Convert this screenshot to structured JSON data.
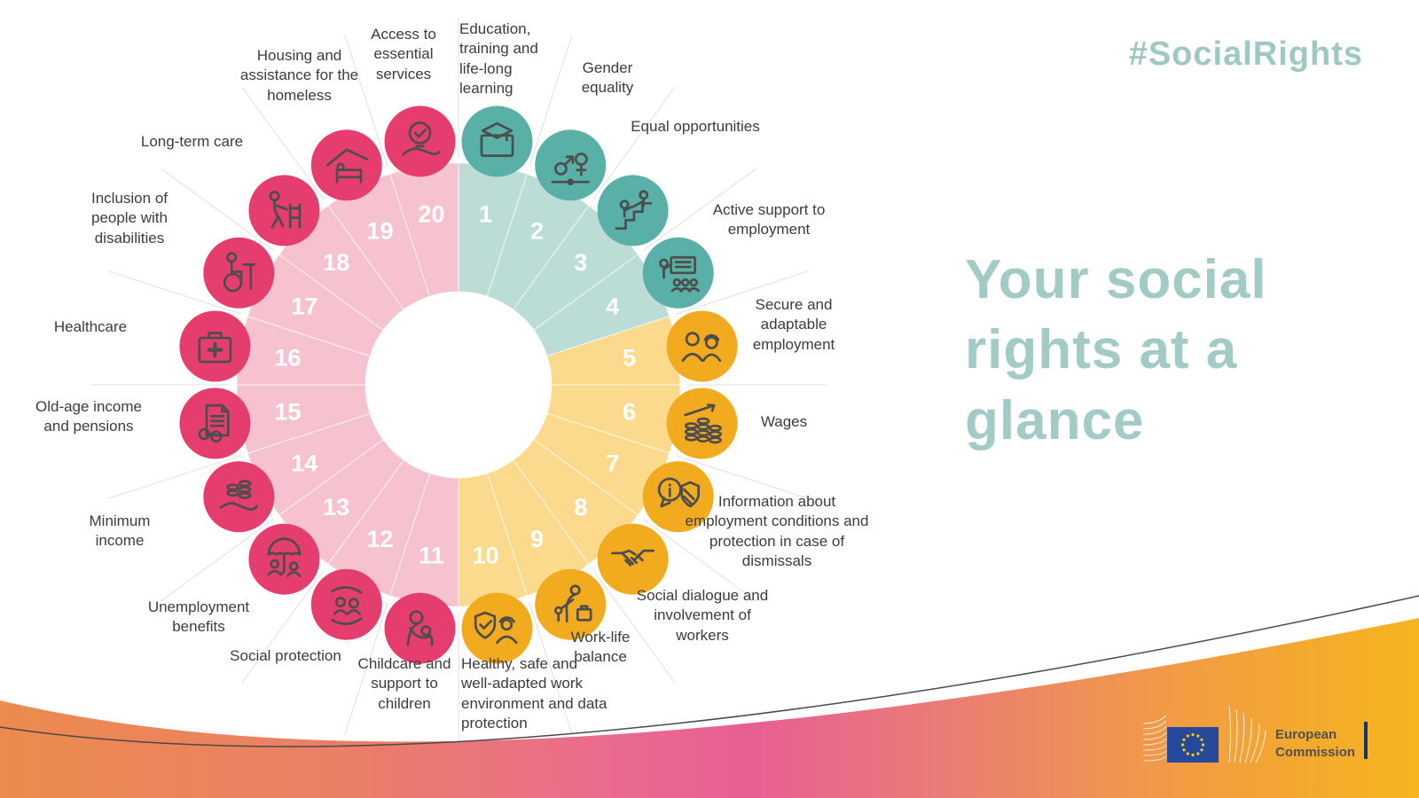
{
  "header": {
    "hashtag": "#SocialRights"
  },
  "title": {
    "text": "Your social rights at a glance"
  },
  "logo": {
    "line1": "European",
    "line2": "Commission"
  },
  "colors": {
    "accent_teal_text": "#9fc8c3",
    "teal_light": "#bcdcd6",
    "teal_dark": "#58b0a6",
    "yellow_light": "#fbd98d",
    "yellow_dark": "#f2ab1e",
    "pink_light": "#f6c2d0",
    "pink_dark": "#e63d6f",
    "wave_orange": "#ec8b4d",
    "wave_pink": "#e75f95",
    "wave_yellow": "#f5b51f"
  },
  "chart_data": {
    "type": "pie",
    "title": "Your social rights at a glance",
    "legend_position": "around",
    "segments_total": 20,
    "segment_angle_deg": 18,
    "values_equal": true,
    "groups": [
      {
        "name": "equal-opportunities-and-access",
        "light": "#bcdcd6",
        "dark": "#58b0a6"
      },
      {
        "name": "fair-working-conditions",
        "light": "#fbd98d",
        "dark": "#f2ab1e"
      },
      {
        "name": "social-protection-and-inclusion",
        "light": "#f6c2d0",
        "dark": "#e63d6f"
      }
    ],
    "segments": [
      {
        "number": 1,
        "label": "Education, training and life-long learning",
        "group": 0,
        "icon": "education-icon"
      },
      {
        "number": 2,
        "label": "Gender equality",
        "group": 0,
        "icon": "gender-equality-icon"
      },
      {
        "number": 3,
        "label": "Equal opportunities",
        "group": 0,
        "icon": "equal-opportunities-icon"
      },
      {
        "number": 4,
        "label": "Active support to employment",
        "group": 0,
        "icon": "active-support-icon"
      },
      {
        "number": 5,
        "label": "Secure and adaptable employment",
        "group": 1,
        "icon": "secure-employment-icon"
      },
      {
        "number": 6,
        "label": "Wages",
        "group": 1,
        "icon": "wages-icon"
      },
      {
        "number": 7,
        "label": "Information about employment conditions and protection in case of dismissals",
        "group": 1,
        "icon": "information-shield-icon"
      },
      {
        "number": 8,
        "label": "Social dialogue and involvement of workers",
        "group": 1,
        "icon": "handshake-icon"
      },
      {
        "number": 9,
        "label": "Work-life balance",
        "group": 1,
        "icon": "work-life-balance-icon"
      },
      {
        "number": 10,
        "label": "Healthy, safe and well-adapted work environment and data protection",
        "group": 1,
        "icon": "healthy-work-icon"
      },
      {
        "number": 11,
        "label": "Childcare and support to children",
        "group": 2,
        "icon": "childcare-icon"
      },
      {
        "number": 12,
        "label": "Social protection",
        "group": 2,
        "icon": "social-protection-icon"
      },
      {
        "number": 13,
        "label": "Unemployment benefits",
        "group": 2,
        "icon": "unemployment-benefits-icon"
      },
      {
        "number": 14,
        "label": "Minimum income",
        "group": 2,
        "icon": "minimum-income-icon"
      },
      {
        "number": 15,
        "label": "Old-age income and pensions",
        "group": 2,
        "icon": "pensions-icon"
      },
      {
        "number": 16,
        "label": "Healthcare",
        "group": 2,
        "icon": "healthcare-icon"
      },
      {
        "number": 17,
        "label": "Inclusion of people with disabilities",
        "group": 2,
        "icon": "disabilities-icon"
      },
      {
        "number": 18,
        "label": "Long-term care",
        "group": 2,
        "icon": "long-term-care-icon"
      },
      {
        "number": 19,
        "label": "Housing and assistance for the homeless",
        "group": 2,
        "icon": "housing-icon"
      },
      {
        "number": 20,
        "label": "Access to essential services",
        "group": 2,
        "icon": "essential-services-icon"
      }
    ]
  }
}
